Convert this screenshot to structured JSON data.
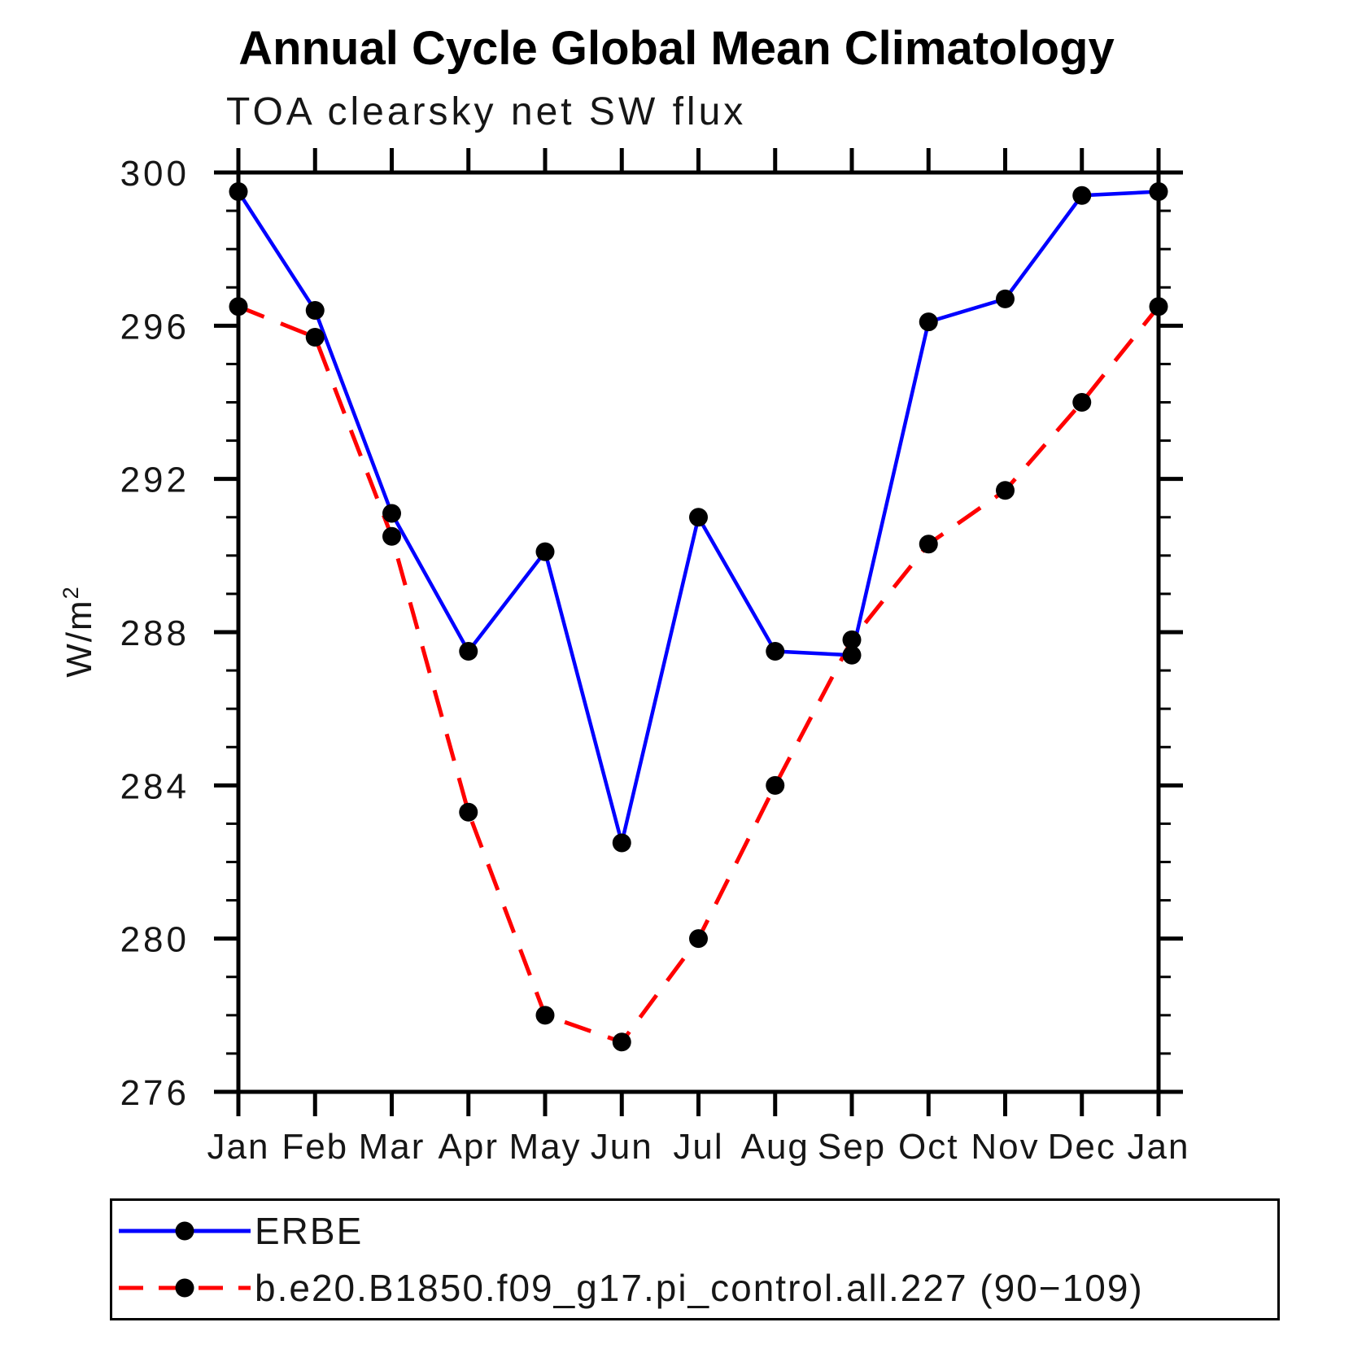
{
  "title": "Annual Cycle Global Mean Climatology",
  "subtitle": "TOA clearsky net SW flux",
  "ylabel": {
    "base": "W/m",
    "sup": "2"
  },
  "chart_data": {
    "type": "line",
    "categories": [
      "Jan",
      "Feb",
      "Mar",
      "Apr",
      "May",
      "Jun",
      "Jul",
      "Aug",
      "Sep",
      "Oct",
      "Nov",
      "Dec",
      "Jan"
    ],
    "series": [
      {
        "name": "ERBE",
        "color": "#0000ff",
        "line_style": "solid",
        "marker": "circle",
        "values": [
          299.5,
          296.4,
          291.1,
          287.5,
          290.1,
          282.5,
          291.0,
          287.5,
          287.4,
          296.1,
          296.7,
          299.4,
          299.5
        ]
      },
      {
        "name": "b.e20.B1850.f09_g17.pi_control.all.227 (90−109)",
        "color": "#ff0000",
        "line_style": "dashed",
        "marker": "circle",
        "values": [
          296.5,
          295.7,
          290.5,
          283.3,
          278.0,
          277.3,
          280.0,
          284.0,
          287.8,
          290.3,
          291.7,
          294.0,
          296.5
        ]
      }
    ],
    "xlabel": "",
    "ylim": [
      276,
      300
    ],
    "yticks": [
      276,
      280,
      284,
      288,
      292,
      296,
      300
    ],
    "yminor_step": 1,
    "marker_color": "#000000",
    "axis_color": "#000000",
    "grid": false,
    "legend_position": "bottom-left"
  }
}
